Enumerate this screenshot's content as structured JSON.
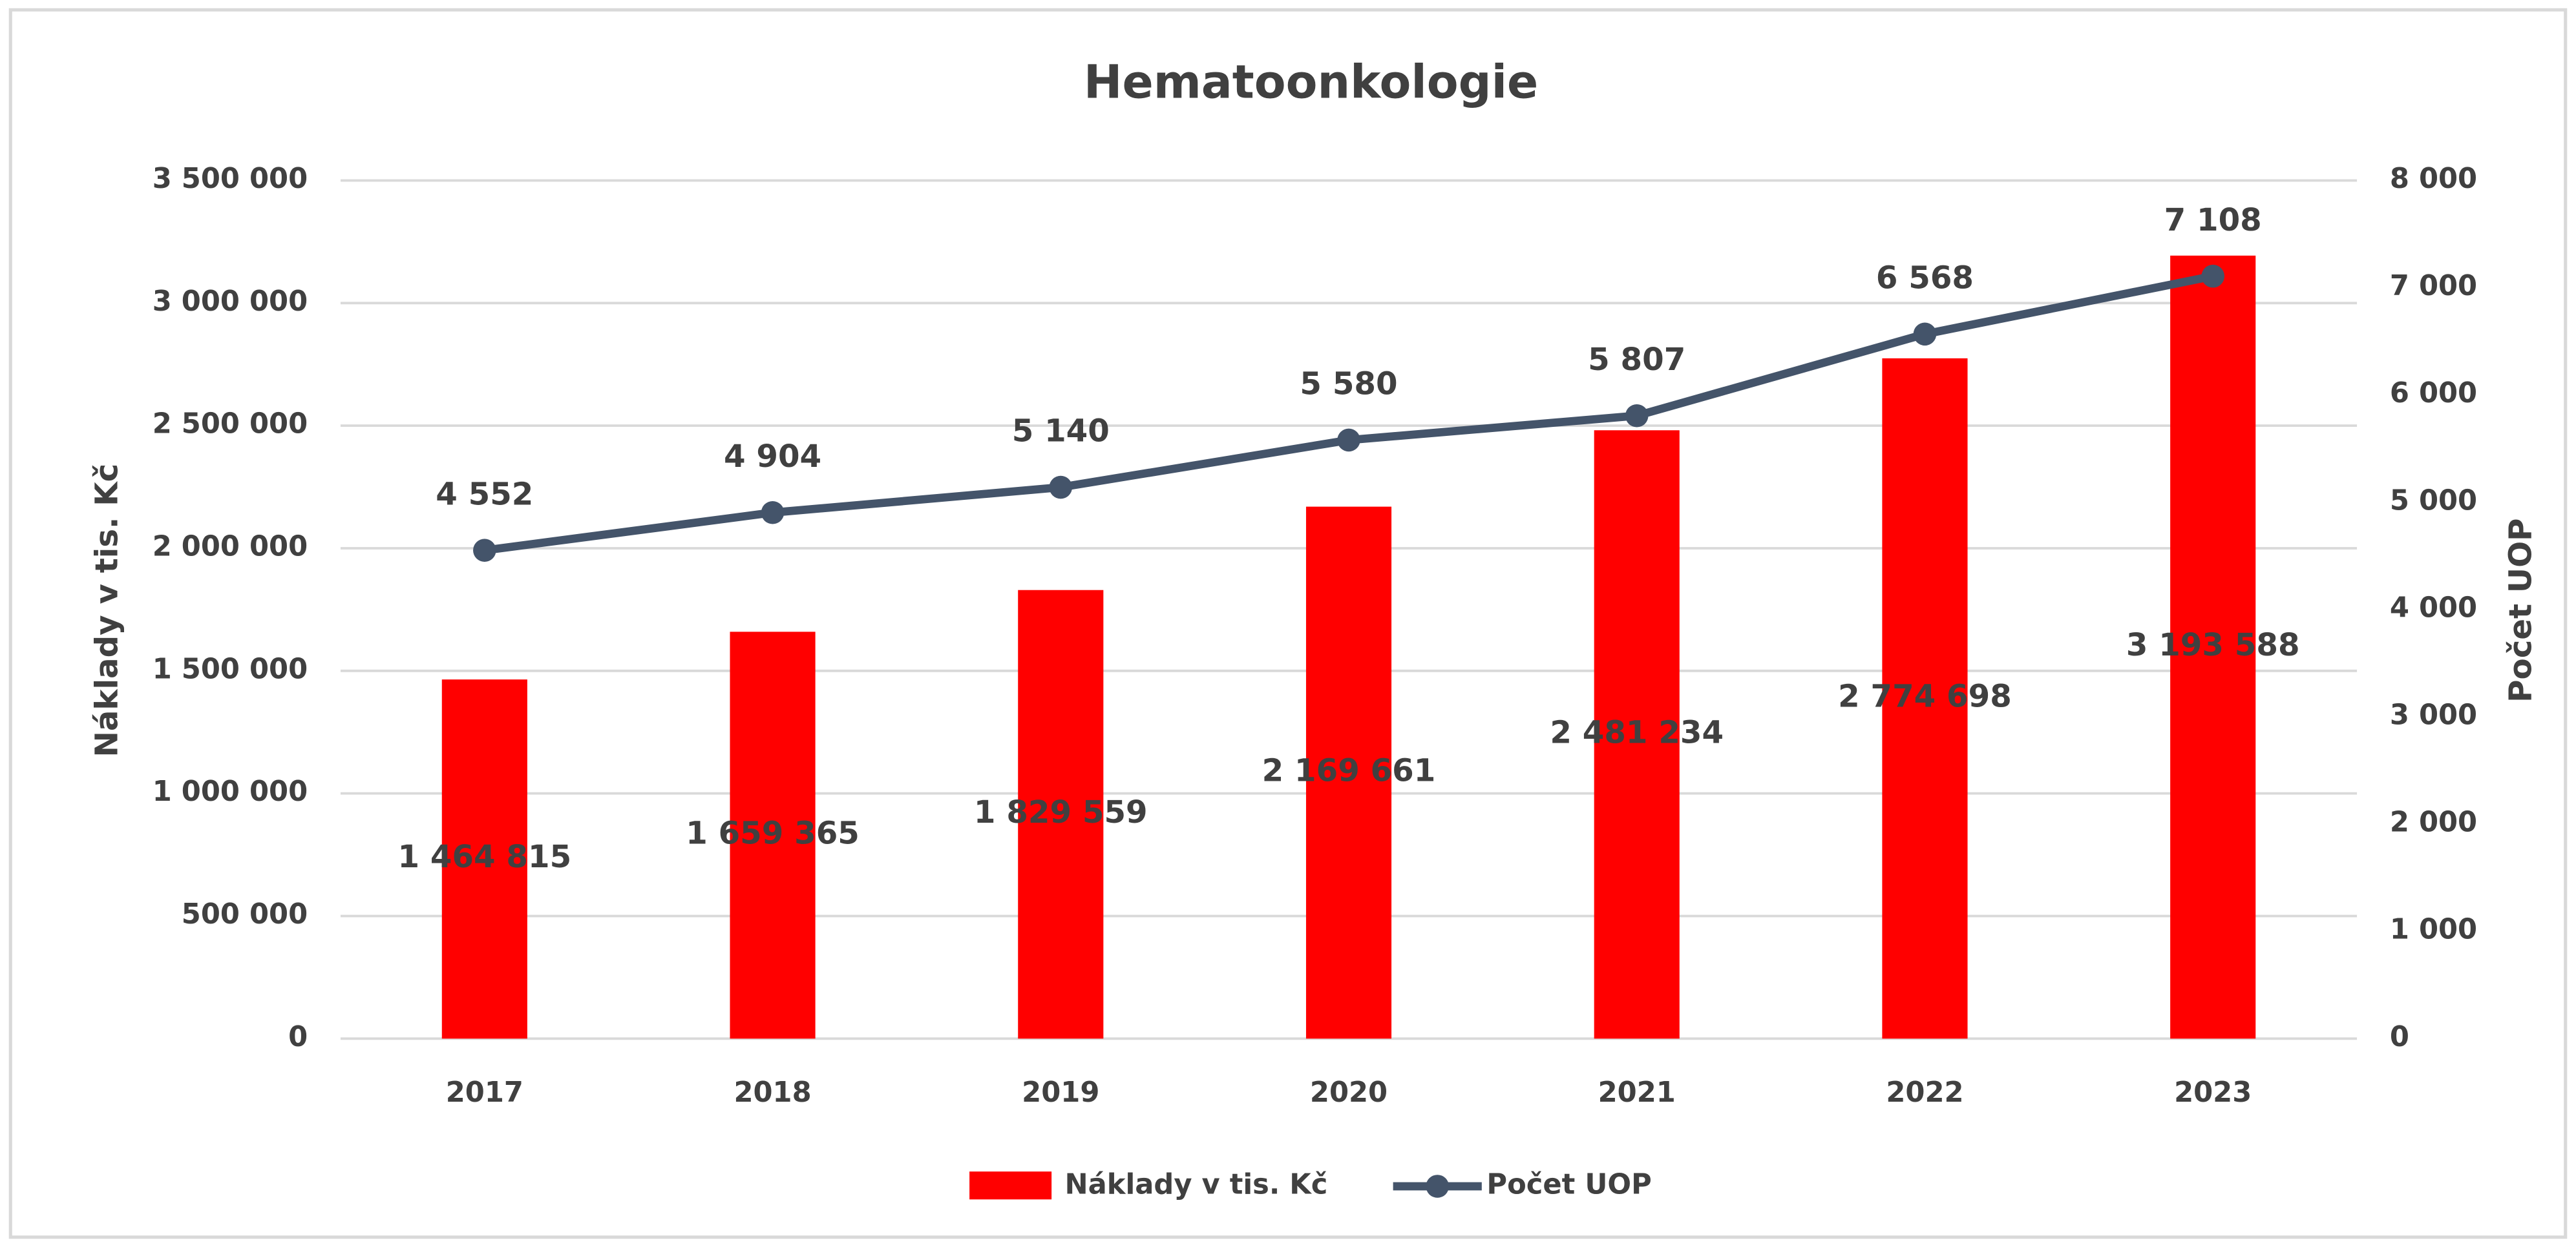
{
  "chart_data": {
    "type": "bar_line",
    "title": "Hematoonkologie",
    "y_label": "Náklady v tis. Kč",
    "y2_label": "Počet UOP",
    "categories": [
      "2017",
      "2018",
      "2019",
      "2020",
      "2021",
      "2022",
      "2023"
    ],
    "series": [
      {
        "name": "Náklady v tis. Kč",
        "type": "bar",
        "color": "#ff0000",
        "values": [
          1464815,
          1659365,
          1829559,
          2169661,
          2481234,
          2774698,
          3193588
        ],
        "value_labels": [
          "1 464 815",
          "1 659 365",
          "1 829 559",
          "2 169 661",
          "2 481 234",
          "2 774 698",
          "3 193 588"
        ]
      },
      {
        "name": "Počet UOP",
        "type": "line",
        "axis": "y2",
        "color": "#44546a",
        "values": [
          4552,
          4904,
          5140,
          5580,
          5807,
          6568,
          7108
        ],
        "value_labels": [
          "4 552",
          "4 904",
          "5 140",
          "5 580",
          "5 807",
          "6 568",
          "7 108"
        ]
      }
    ],
    "ylim": [
      0,
      3500000
    ],
    "yticks": [
      0,
      {
        "value": 500000,
        "label": "500 000"
      },
      {
        "value": 1000000,
        "label": "1 000 000"
      },
      {
        "value": 1500000,
        "label": "1 500 000"
      },
      {
        "value": 2000000,
        "label": "2 000 000"
      },
      {
        "value": 2500000,
        "label": "2 500 000"
      },
      {
        "value": 3000000,
        "label": "3 000 000"
      },
      {
        "value": 3500000,
        "label": "3 500 000"
      }
    ],
    "y2lim": [
      0,
      8000
    ],
    "y2ticks": [
      0,
      {
        "value": 1000,
        "label": "1 000"
      },
      {
        "value": 2000,
        "label": "2 000"
      },
      {
        "value": 3000,
        "label": "3 000"
      },
      {
        "value": 4000,
        "label": "4 000"
      },
      {
        "value": 5000,
        "label": "5 000"
      },
      {
        "value": 6000,
        "label": "6 000"
      },
      {
        "value": 7000,
        "label": "7 000"
      },
      {
        "value": 8000,
        "label": "8 000"
      }
    ],
    "grid": true,
    "legend": "bottom"
  }
}
